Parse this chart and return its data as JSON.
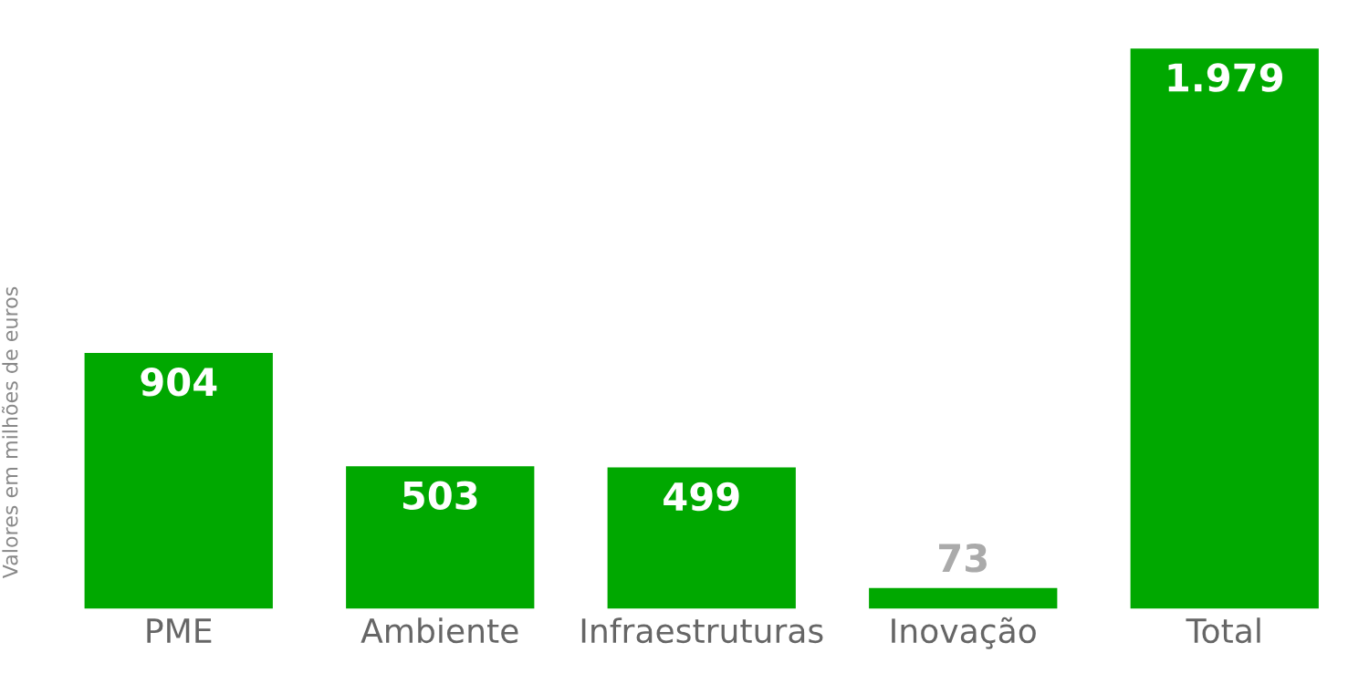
{
  "chart_data": {
    "type": "bar",
    "ylabel": "Valores em milhões de euros",
    "categories": [
      "PME",
      "Ambiente",
      "Infraestruturas",
      "Inovação",
      "Total"
    ],
    "values": [
      904,
      503,
      499,
      73,
      1979
    ],
    "value_labels": [
      "904",
      "503",
      "499",
      "73",
      "1.979"
    ],
    "color": "#00a800",
    "grid": false,
    "legend": false
  }
}
